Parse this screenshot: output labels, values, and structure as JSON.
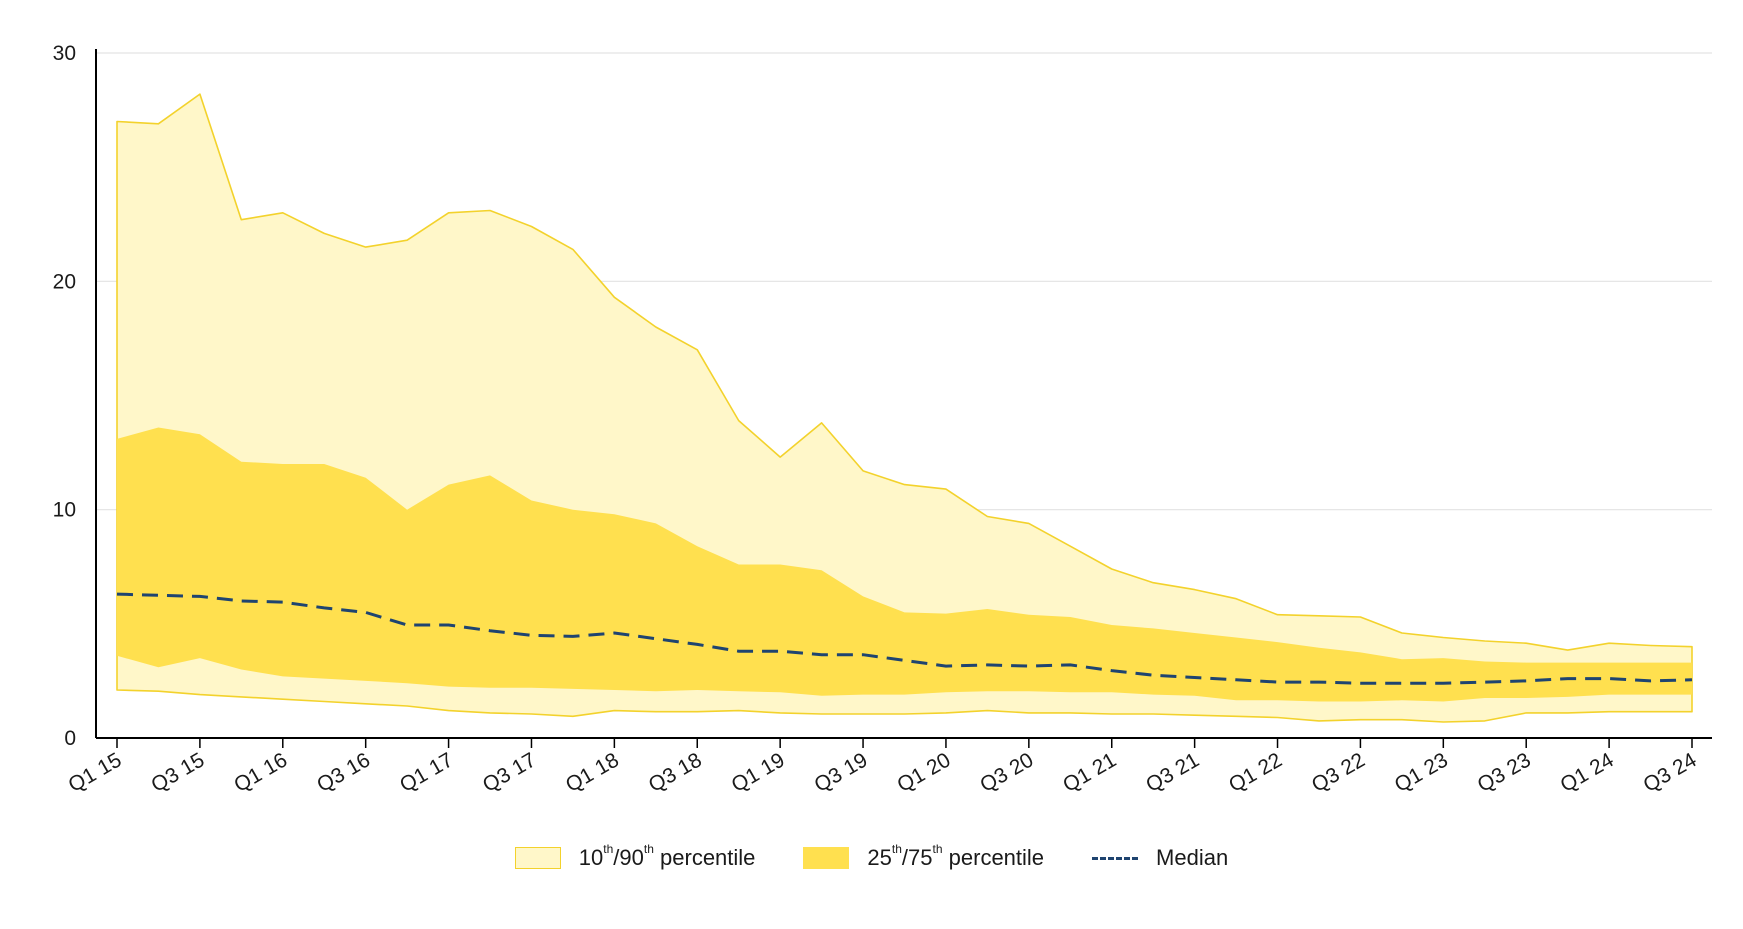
{
  "chart_data": {
    "type": "area",
    "categories": [
      "Q1 15",
      "Q2 15",
      "Q3 15",
      "Q4 15",
      "Q1 16",
      "Q2 16",
      "Q3 16",
      "Q4 16",
      "Q1 17",
      "Q2 17",
      "Q3 17",
      "Q4 17",
      "Q1 18",
      "Q2 18",
      "Q3 18",
      "Q4 18",
      "Q1 19",
      "Q2 19",
      "Q3 19",
      "Q4 19",
      "Q1 20",
      "Q2 20",
      "Q3 20",
      "Q4 20",
      "Q1 21",
      "Q2 21",
      "Q3 21",
      "Q4 21",
      "Q1 22",
      "Q2 22",
      "Q3 22",
      "Q4 22",
      "Q1 23",
      "Q2 23",
      "Q3 23",
      "Q4 23",
      "Q1 24",
      "Q2 24",
      "Q3 24"
    ],
    "tick_labels": [
      "Q1 15",
      "Q3 15",
      "Q1 16",
      "Q3 16",
      "Q1 17",
      "Q3 17",
      "Q1 18",
      "Q3 18",
      "Q1 19",
      "Q3 19",
      "Q1 20",
      "Q3 20",
      "Q1 21",
      "Q3 21",
      "Q1 22",
      "Q3 22",
      "Q1 23",
      "Q3 23",
      "Q1 24",
      "Q3 24"
    ],
    "y_ticks": [
      "0",
      "10",
      "20",
      "30"
    ],
    "ylim": [
      0,
      30
    ],
    "grid": "horizontal",
    "legend_position": "bottom-center",
    "series": [
      {
        "name_parts": [
          "10",
          "th",
          "/90",
          "th",
          " percentile"
        ],
        "lower": [
          2.1,
          2.05,
          1.9,
          1.8,
          1.7,
          1.6,
          1.5,
          1.4,
          1.2,
          1.1,
          1.05,
          0.95,
          1.2,
          1.15,
          1.15,
          1.2,
          1.1,
          1.05,
          1.05,
          1.05,
          1.1,
          1.2,
          1.1,
          1.1,
          1.05,
          1.05,
          1.0,
          0.95,
          0.9,
          0.75,
          0.8,
          0.8,
          0.7,
          0.75,
          1.1,
          1.1,
          1.15,
          1.15,
          1.15
        ],
        "upper": [
          27.0,
          26.9,
          28.2,
          22.7,
          23.0,
          22.1,
          21.5,
          21.8,
          23.0,
          23.1,
          22.4,
          21.4,
          19.3,
          18.0,
          17.0,
          13.9,
          12.3,
          13.8,
          11.7,
          11.1,
          10.9,
          9.7,
          9.4,
          8.4,
          7.4,
          6.8,
          6.5,
          6.1,
          5.4,
          5.35,
          5.3,
          4.6,
          4.4,
          4.25,
          4.15,
          3.85,
          4.15,
          4.05,
          4.0
        ],
        "color": "#FFF7C9",
        "stroke": "#F3D22C"
      },
      {
        "name_parts": [
          "25",
          "th",
          "/75",
          "th",
          " percentile"
        ],
        "lower": [
          3.6,
          3.1,
          3.5,
          3.0,
          2.7,
          2.6,
          2.5,
          2.4,
          2.25,
          2.2,
          2.2,
          2.15,
          2.1,
          2.05,
          2.1,
          2.05,
          2.0,
          1.85,
          1.9,
          1.9,
          2.0,
          2.05,
          2.05,
          2.0,
          2.0,
          1.9,
          1.85,
          1.65,
          1.65,
          1.6,
          1.6,
          1.65,
          1.6,
          1.75,
          1.75,
          1.8,
          1.9,
          1.9,
          1.9
        ],
        "upper": [
          13.1,
          13.6,
          13.3,
          12.1,
          12.0,
          12.0,
          11.4,
          10.0,
          11.1,
          11.5,
          10.4,
          10.0,
          9.8,
          9.4,
          8.4,
          7.6,
          7.6,
          7.35,
          6.2,
          5.5,
          5.45,
          5.65,
          5.4,
          5.3,
          4.95,
          4.8,
          4.6,
          4.4,
          4.2,
          3.95,
          3.75,
          3.45,
          3.5,
          3.35,
          3.3,
          3.3,
          3.3,
          3.3,
          3.3
        ],
        "color": "#FFE04F"
      },
      {
        "name": "Median",
        "values": [
          6.3,
          6.25,
          6.2,
          6.0,
          5.95,
          5.7,
          5.5,
          4.95,
          4.95,
          4.7,
          4.5,
          4.45,
          4.6,
          4.35,
          4.1,
          3.8,
          3.8,
          3.65,
          3.65,
          3.4,
          3.15,
          3.2,
          3.15,
          3.2,
          2.95,
          2.75,
          2.65,
          2.55,
          2.45,
          2.45,
          2.4,
          2.4,
          2.4,
          2.45,
          2.5,
          2.6,
          2.6,
          2.5,
          2.55
        ],
        "color": "#1F4470",
        "dash": "dashed"
      }
    ]
  },
  "legend": {
    "outer_num1": "10",
    "outer_sup1": "th",
    "outer_num2": "/90",
    "outer_sup2": "th",
    "outer_text": " percentile",
    "inner_num1": "25",
    "inner_sup1": "th",
    "inner_num2": "/75",
    "inner_sup2": "th",
    "inner_text": " percentile",
    "median": "Median"
  }
}
